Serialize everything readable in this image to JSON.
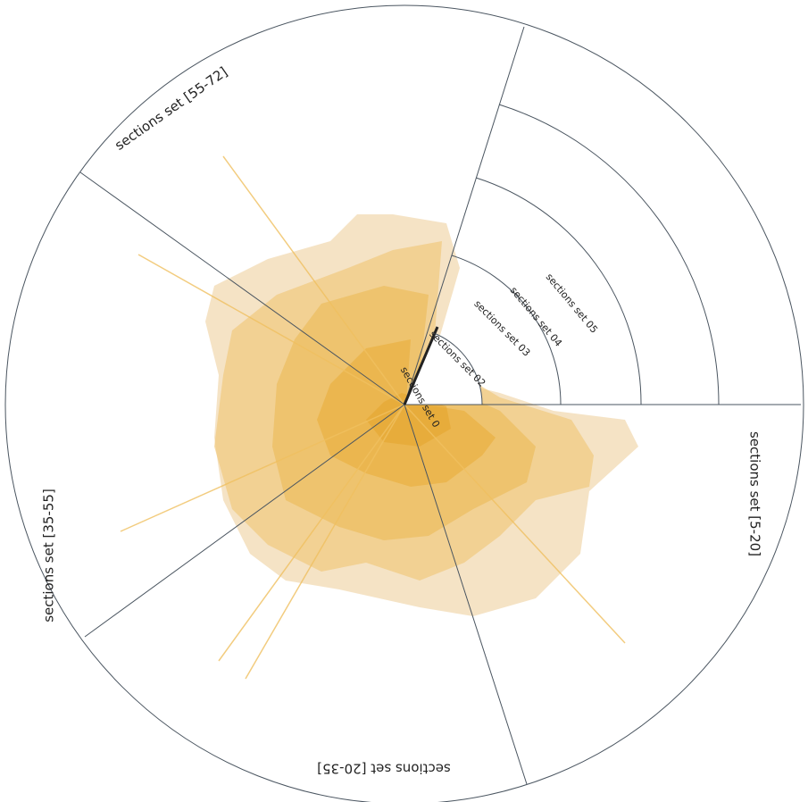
{
  "diagram": {
    "sectors": [
      {
        "label": "sections set [55-72]"
      },
      {
        "label": "sections set [5-20]"
      },
      {
        "label": "sections set [20-35]"
      },
      {
        "label": "sections set [35-55]"
      }
    ],
    "rings": [
      {
        "label": "sections set 0"
      },
      {
        "label": "sections set 02"
      },
      {
        "label": "sections set 03"
      },
      {
        "label": "sections set 04"
      },
      {
        "label": "sections set 05"
      }
    ]
  }
}
